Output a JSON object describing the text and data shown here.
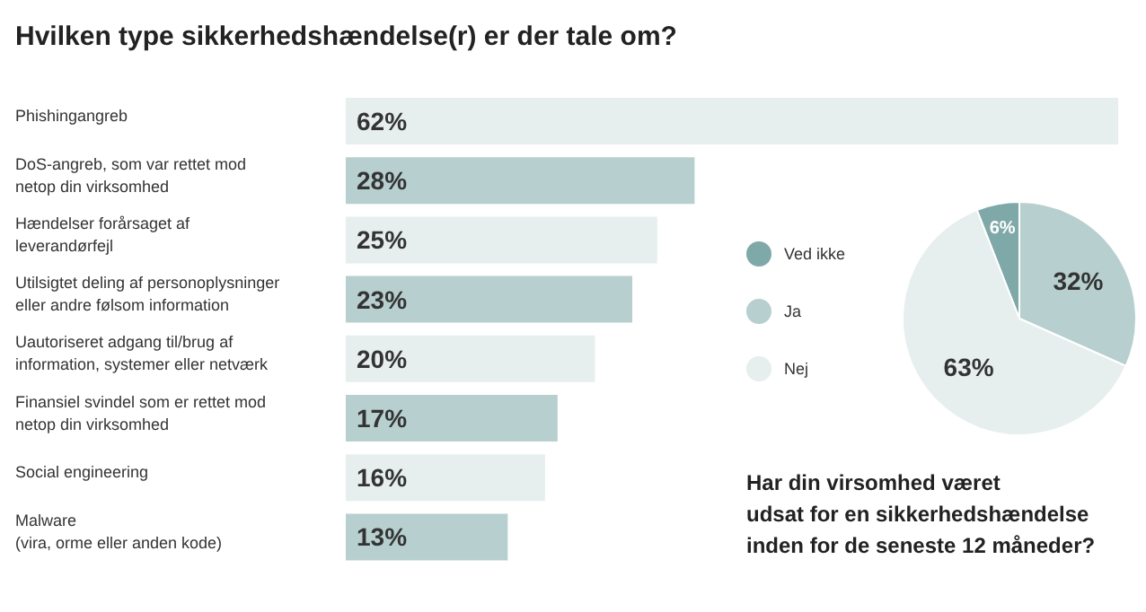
{
  "chart_data": [
    {
      "type": "bar",
      "orientation": "horizontal",
      "title": "Hvilken type sikkerhedshændelse(r) er der tale om?",
      "categories": [
        "Phishingangreb",
        "DoS-angreb, som var rettet mod\nnetop din virksomhed",
        "Hændelser forårsaget af\nleverandørfejl",
        "Utilsigtet deling af personoplysninger\neller andre følsom information",
        "Uautoriseret adgang til/brug af\ninformation, systemer eller netværk",
        "Finansiel svindel som er rettet mod\nnetop din virksomhed",
        "Social engineering",
        "Malware\n(vira, orme eller anden kode)"
      ],
      "values": [
        62,
        28,
        25,
        23,
        20,
        17,
        16,
        13
      ],
      "value_labels": [
        "62%",
        "28%",
        "25%",
        "23%",
        "20%",
        "17%",
        "16%",
        "13%"
      ],
      "colors": [
        "#e7eeee",
        "#b7cfcf",
        "#e7eeee",
        "#b7cfcf",
        "#e7eeee",
        "#b7cfcf",
        "#e7eeee",
        "#b7cfcf"
      ]
    },
    {
      "type": "pie",
      "title": "Har din virsomhed været\nudsat for en sikkerhedshændelse\ninden for de seneste 12 måneder?",
      "categories": [
        "Ved ikke",
        "Ja",
        "Nej"
      ],
      "values": [
        6,
        32,
        63
      ],
      "value_labels": [
        "6%",
        "32%",
        "63%"
      ],
      "colors": [
        "#7fa9a8",
        "#b7cfcf",
        "#e6eeee"
      ],
      "legend": "left"
    }
  ]
}
